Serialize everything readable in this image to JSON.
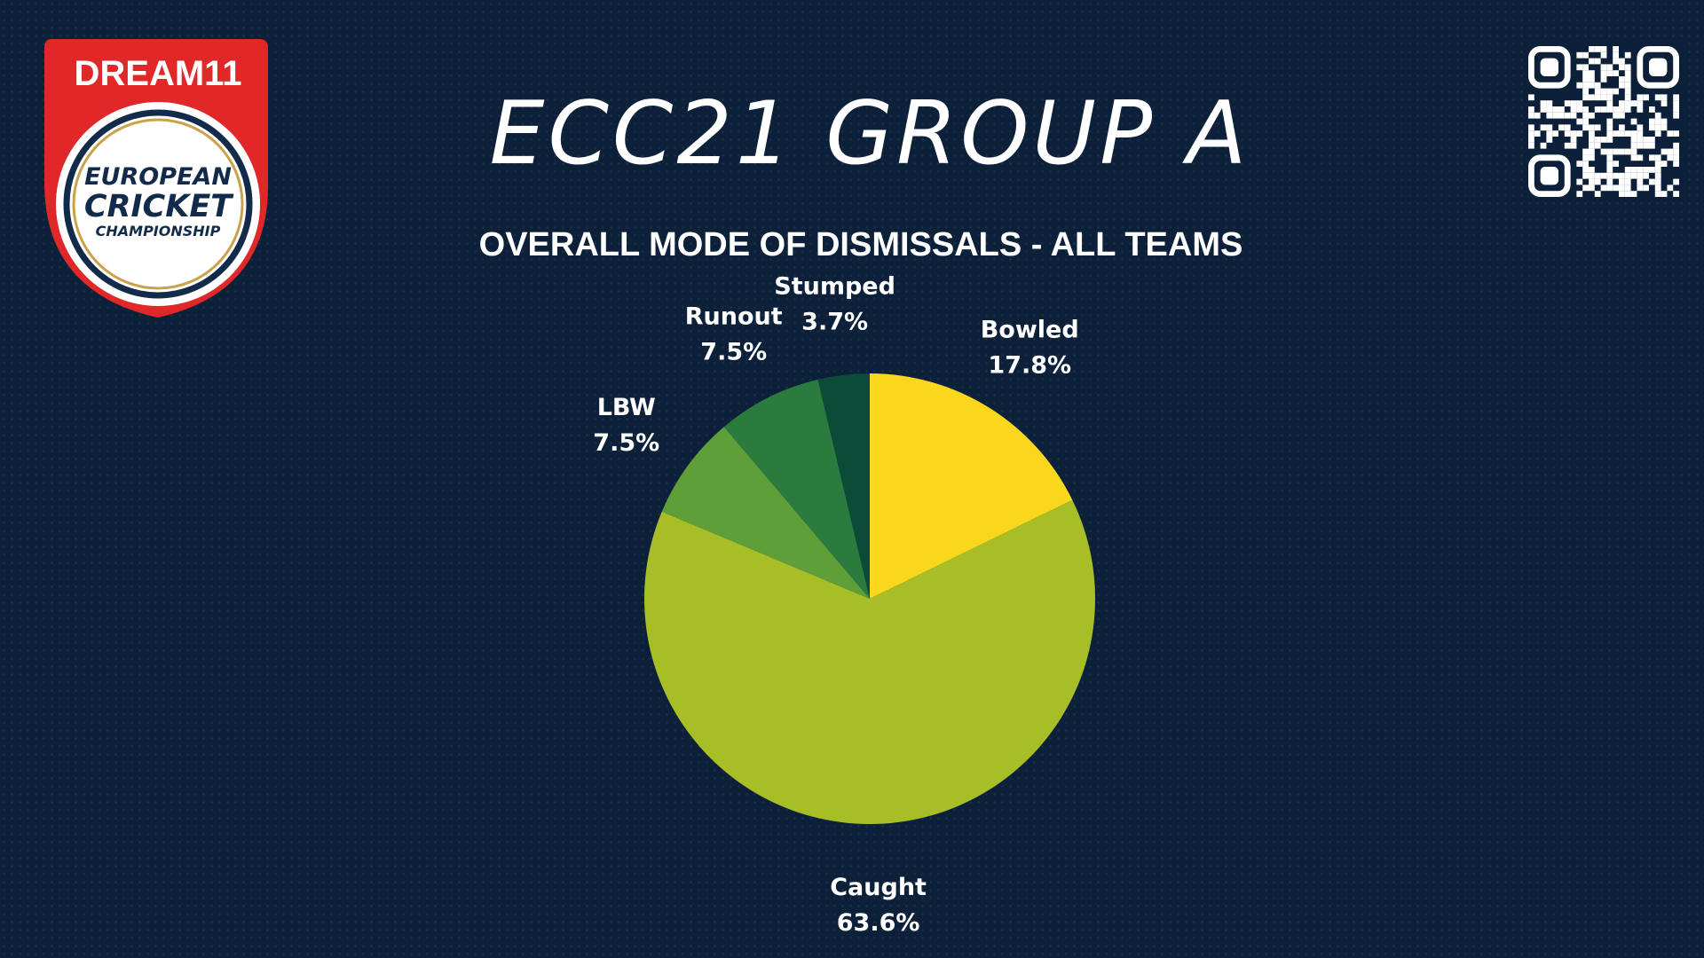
{
  "header": {
    "title": "ECC21 GROUP A",
    "logo": {
      "brand": "DREAM11",
      "line1": "EUROPEAN",
      "line2": "CRICKET",
      "line3": "CHAMPIONSHIP"
    },
    "qr_icon": "qr-code-icon"
  },
  "chart_data": {
    "type": "pie",
    "title": "OVERALL MODE OF DISMISSALS - ALL TEAMS",
    "start_angle_deg": 0,
    "direction": "clockwise",
    "slices": [
      {
        "name": "Bowled",
        "value": 17.8,
        "label": "17.8%",
        "color": "#f9d71c"
      },
      {
        "name": "Caught",
        "value": 63.6,
        "label": "63.6%",
        "color": "#a8be27"
      },
      {
        "name": "LBW",
        "value": 7.5,
        "label": "7.5%",
        "color": "#5f9f3a"
      },
      {
        "name": "Runout",
        "value": 7.5,
        "label": "7.5%",
        "color": "#2b7b3e"
      },
      {
        "name": "Stumped",
        "value": 3.7,
        "label": "3.7%",
        "color": "#0b4b37"
      }
    ]
  }
}
